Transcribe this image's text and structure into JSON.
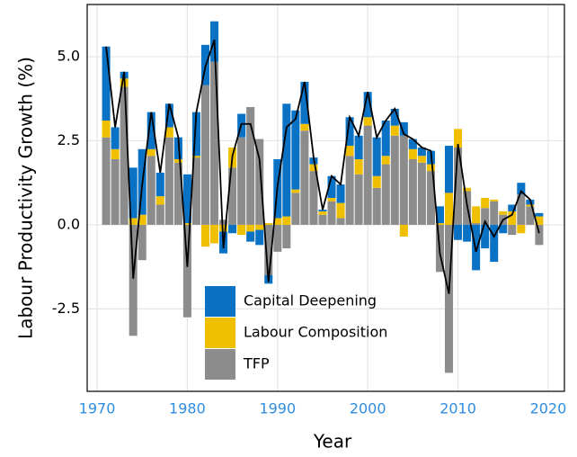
{
  "chart_data": {
    "type": "bar",
    "x_label": "Year",
    "y_label": "Labour Productivity Growth (%)",
    "x": [
      1971,
      1972,
      1973,
      1974,
      1975,
      1976,
      1977,
      1978,
      1979,
      1980,
      1981,
      1982,
      1983,
      1984,
      1985,
      1986,
      1987,
      1988,
      1989,
      1990,
      1991,
      1992,
      1993,
      1994,
      1995,
      1996,
      1997,
      1998,
      1999,
      2000,
      2001,
      2002,
      2003,
      2004,
      2005,
      2006,
      2007,
      2008,
      2009,
      2010,
      2011,
      2012,
      2013,
      2014,
      2015,
      2016,
      2017,
      2018,
      2019
    ],
    "series": [
      {
        "name": "TFP",
        "color": "#8c8c8c",
        "values": [
          2.6,
          1.95,
          4.1,
          -3.3,
          -1.05,
          2.05,
          0.6,
          2.6,
          1.85,
          -2.75,
          2.0,
          4.15,
          4.85,
          0.15,
          1.7,
          2.6,
          3.5,
          2.55,
          -1.5,
          -0.8,
          -0.7,
          0.95,
          2.8,
          1.6,
          0.3,
          0.7,
          0.2,
          2.05,
          1.5,
          2.95,
          1.1,
          1.8,
          2.65,
          2.65,
          1.95,
          1.85,
          1.6,
          -1.4,
          -4.4,
          2.3,
          1.0,
          0.05,
          0.5,
          0.7,
          0.3,
          -0.3,
          0.9,
          0.55,
          -0.6
        ]
      },
      {
        "name": "Labour Composition",
        "color": "#f0c000",
        "values": [
          0.5,
          0.3,
          0.25,
          0.2,
          0.3,
          0.2,
          0.25,
          0.3,
          0.1,
          0.05,
          0.05,
          -0.65,
          -0.55,
          -0.2,
          0.6,
          -0.3,
          -0.2,
          -0.15,
          0.05,
          0.2,
          0.25,
          0.1,
          0.2,
          0.2,
          0.1,
          0.1,
          0.45,
          0.3,
          0.45,
          0.25,
          0.35,
          0.25,
          0.3,
          -0.35,
          0.3,
          0.2,
          0.2,
          0.05,
          0.95,
          0.55,
          0.1,
          0.5,
          0.3,
          0.05,
          0.1,
          0.4,
          -0.25,
          0.05,
          0.25
        ]
      },
      {
        "name": "Capital Deepening",
        "color": "#0a72c4",
        "values": [
          2.2,
          0.65,
          0.2,
          1.5,
          1.95,
          1.1,
          0.7,
          0.7,
          0.65,
          1.45,
          1.3,
          1.2,
          1.2,
          -0.65,
          -0.25,
          0.7,
          -0.3,
          -0.45,
          -0.25,
          1.75,
          3.35,
          2.35,
          1.25,
          0.2,
          0.05,
          0.65,
          0.55,
          0.85,
          0.7,
          0.75,
          1.15,
          1.05,
          0.5,
          0.4,
          0.3,
          0.25,
          0.4,
          0.5,
          1.4,
          -0.45,
          -0.5,
          -1.35,
          -0.7,
          -1.1,
          -0.25,
          0.2,
          0.35,
          0.15,
          0.1
        ]
      }
    ],
    "total": {
      "color": "#000000",
      "values": [
        5.3,
        2.9,
        4.55,
        -1.6,
        1.2,
        3.35,
        1.55,
        3.6,
        2.6,
        -1.25,
        3.35,
        4.7,
        5.5,
        -0.7,
        2.05,
        3.0,
        3.0,
        1.95,
        -1.7,
        1.15,
        2.9,
        3.15,
        4.25,
        2.0,
        0.45,
        1.45,
        1.2,
        3.2,
        2.65,
        3.95,
        2.6,
        3.1,
        3.45,
        2.7,
        2.55,
        2.3,
        2.2,
        -0.85,
        -2.05,
        2.4,
        0.6,
        -0.8,
        0.1,
        -0.35,
        0.15,
        0.3,
        1.0,
        0.75,
        -0.25
      ]
    },
    "xlim": [
      1968.9,
      2021.8
    ],
    "ylim": [
      -4.95,
      6.55
    ],
    "xticks": [
      1970,
      1980,
      1990,
      2000,
      2010,
      2020
    ],
    "yticks": [
      {
        "value": -2.5,
        "label": "-2.5"
      },
      {
        "value": 0,
        "label": "0.0"
      },
      2.5,
      {
        "value": 5,
        "label": "5.0"
      }
    ],
    "grid": true
  }
}
